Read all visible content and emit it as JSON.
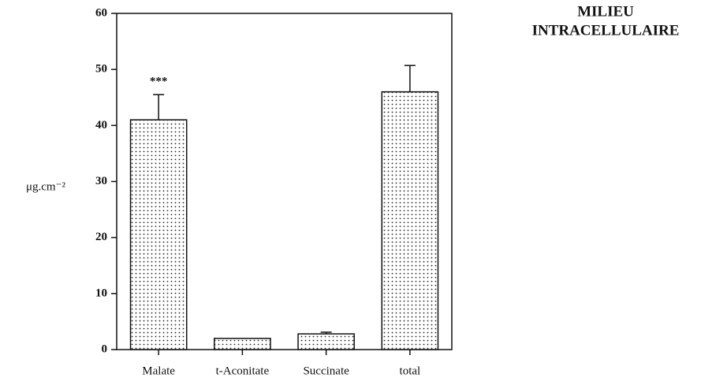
{
  "chart_data": {
    "type": "bar",
    "title": [
      "MILIEU",
      "INTRACELLULAIRE"
    ],
    "ylabel": "μg.cm⁻²",
    "categories": [
      "Malate",
      "t-Aconitate",
      "Succinate",
      "total"
    ],
    "values": [
      41,
      2,
      2.8,
      46
    ],
    "errors": [
      4.5,
      0,
      0.3,
      4.7
    ],
    "color": "#222",
    "ylim": [
      0,
      60
    ],
    "yticks": [
      0,
      10,
      20,
      30,
      40,
      50,
      60
    ],
    "grid": false,
    "annotations": [
      {
        "text": "***",
        "x": "Malate"
      }
    ]
  }
}
